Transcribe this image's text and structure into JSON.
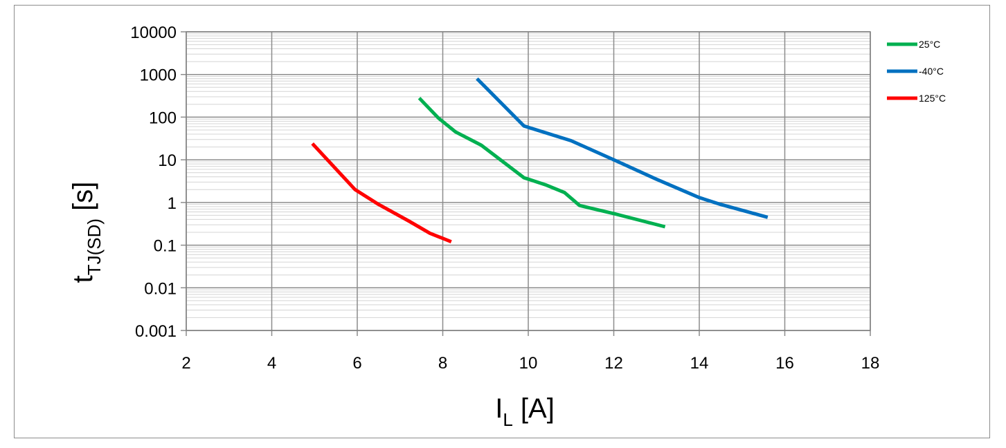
{
  "chart_data": {
    "type": "line",
    "title": "",
    "xlabel": {
      "main": "I",
      "sub": "L",
      "unit": " [A]"
    },
    "ylabel": {
      "main": "t",
      "sub": "TJ(SD)",
      "unit": " [s]"
    },
    "xlim": [
      2,
      18
    ],
    "x_ticks": [
      "2",
      "4",
      "6",
      "8",
      "10",
      "12",
      "14",
      "16",
      "18"
    ],
    "ylim": [
      0.001,
      10000
    ],
    "y_scale": "log",
    "y_ticks": [
      "10000",
      "1000",
      "100",
      "10",
      "1",
      "0.1",
      "0.01",
      "0.001"
    ],
    "grid": true,
    "legend_position": "right",
    "series": [
      {
        "name": "25°C",
        "color": "#00b050",
        "points": [
          [
            7.45,
            280
          ],
          [
            7.9,
            95
          ],
          [
            8.3,
            45
          ],
          [
            8.9,
            22
          ],
          [
            9.9,
            3.8
          ],
          [
            10.4,
            2.6
          ],
          [
            10.85,
            1.7
          ],
          [
            11.2,
            0.85
          ],
          [
            11.5,
            0.72
          ],
          [
            12.0,
            0.55
          ],
          [
            13.2,
            0.27
          ]
        ]
      },
      {
        "name": "-40°C",
        "color": "#0070c0",
        "points": [
          [
            8.8,
            800
          ],
          [
            9.9,
            62
          ],
          [
            11.0,
            28
          ],
          [
            12.0,
            10
          ],
          [
            13.0,
            3.5
          ],
          [
            14.0,
            1.3
          ],
          [
            14.5,
            0.9
          ],
          [
            15.6,
            0.45
          ]
        ]
      },
      {
        "name": "125°C",
        "color": "#ff0000",
        "points": [
          [
            4.95,
            24
          ],
          [
            5.95,
            2.0
          ],
          [
            6.5,
            0.9
          ],
          [
            7.2,
            0.37
          ],
          [
            7.7,
            0.19
          ],
          [
            8.2,
            0.12
          ]
        ]
      }
    ]
  }
}
